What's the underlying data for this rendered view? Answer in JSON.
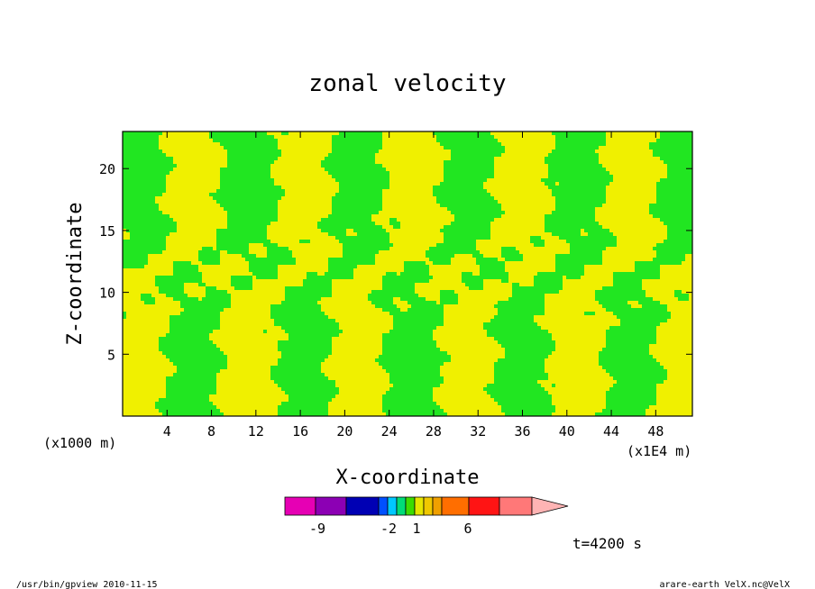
{
  "chart_data": {
    "type": "heatmap",
    "title": "zonal velocity",
    "xlabel": "X-coordinate",
    "ylabel": "Z-coordinate",
    "x_unit_left": "(x1000 m)",
    "x_unit_right": "(x1E4 m)",
    "x_ticks": [
      4,
      8,
      12,
      16,
      20,
      24,
      28,
      32,
      36,
      40,
      44,
      48
    ],
    "y_ticks": [
      5,
      10,
      15,
      20
    ],
    "xlim": [
      0,
      51.3
    ],
    "ylim": [
      0,
      23
    ],
    "time_label": "t=4200 s",
    "colorbar": {
      "tick_labels": [
        "-9",
        "-2",
        "1",
        "6"
      ],
      "colors": [
        "#e600b4",
        "#8c00b4",
        "#0000b4",
        "#0050ff",
        "#00c8ff",
        "#00dc78",
        "#3cdc00",
        "#e6e600",
        "#f0c800",
        "#f0a000",
        "#ff6e00",
        "#ff1414",
        "#ff7878",
        "#ffb4b4"
      ]
    },
    "pattern": {
      "description_colors": {
        "low": "#21e621",
        "high": "#f0f000"
      }
    }
  },
  "footer": {
    "left": "/usr/bin/gpview   2010-11-15",
    "right": "arare-earth_VelX.nc@VelX"
  }
}
